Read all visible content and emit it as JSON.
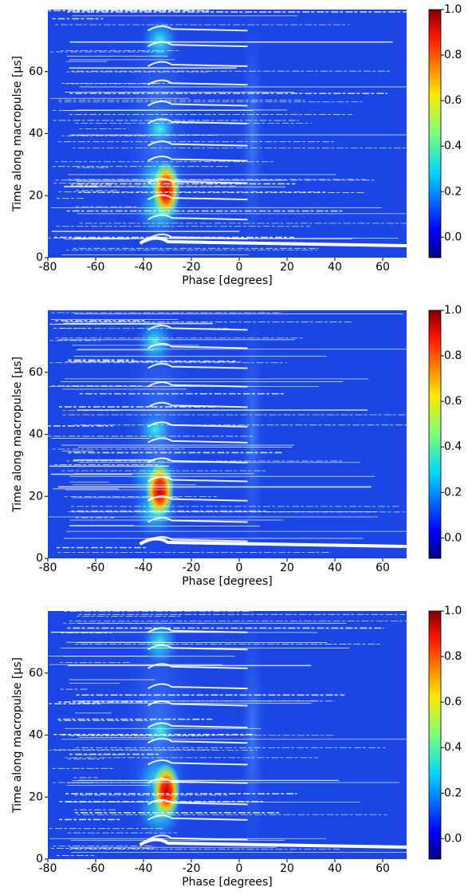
{
  "chart_data": [
    {
      "type": "heatmap",
      "xlabel": "Phase [degrees]",
      "ylabel": "Time along macropulse [μs]",
      "xlim": [
        -80,
        70
      ],
      "xticks": [
        -80,
        -60,
        -40,
        -20,
        0,
        20,
        40,
        60
      ],
      "ylim": [
        0,
        80
      ],
      "yticks": [
        0,
        20,
        40,
        60
      ],
      "clim": [
        -0.09,
        1.0
      ],
      "cticks": [
        {
          "value": 0,
          "label": "0.0"
        },
        0.2,
        0.4,
        0.6,
        0.8,
        {
          "value": 1,
          "label": "1.0"
        }
      ],
      "colormap": "jet"
    },
    {
      "type": "heatmap",
      "xlabel": "Phase [degrees]",
      "ylabel": "Time along macropulse [μs]",
      "xlim": [
        -80,
        70
      ],
      "xticks": [
        -80,
        -60,
        -40,
        -20,
        0,
        20,
        40,
        60
      ],
      "ylim": [
        0,
        80
      ],
      "yticks": [
        0,
        20,
        40,
        60
      ],
      "clim": [
        -0.09,
        1.0
      ],
      "cticks": [
        {
          "value": 0,
          "label": "0.0"
        },
        0.2,
        0.4,
        0.6,
        0.8,
        {
          "value": 1,
          "label": "1.0"
        }
      ],
      "colormap": "jet"
    },
    {
      "type": "heatmap",
      "xlabel": "Phase [degrees]",
      "ylabel": "Time along macropulse [μs]",
      "xlim": [
        -80,
        70
      ],
      "xticks": [
        -80,
        -60,
        -40,
        -20,
        0,
        20,
        40,
        60
      ],
      "ylim": [
        0,
        80
      ],
      "yticks": [
        0,
        20,
        40,
        60
      ],
      "clim": [
        -0.09,
        1.0
      ],
      "cticks": [
        {
          "value": 0,
          "label": "0.0"
        },
        0.2,
        0.4,
        0.6,
        0.8,
        {
          "value": 1,
          "label": "1.0"
        }
      ],
      "colormap": "jet"
    }
  ]
}
